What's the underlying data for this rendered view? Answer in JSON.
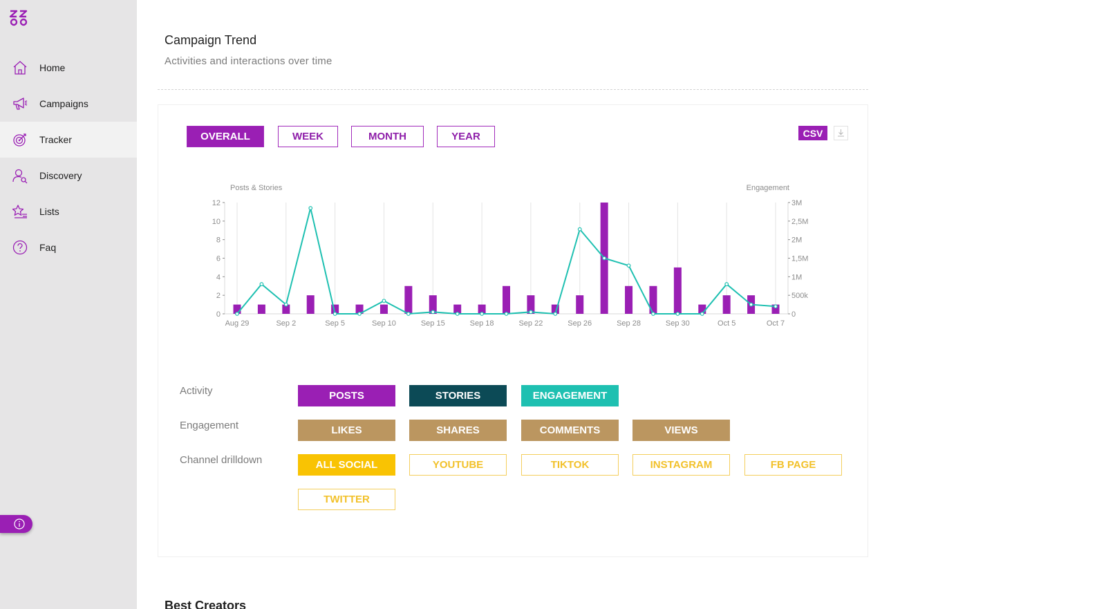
{
  "sidebar": {
    "items": [
      {
        "label": "Home",
        "icon": "home-icon"
      },
      {
        "label": "Campaigns",
        "icon": "megaphone-icon"
      },
      {
        "label": "Tracker",
        "icon": "target-icon",
        "active": true
      },
      {
        "label": "Discovery",
        "icon": "user-search-icon"
      },
      {
        "label": "Lists",
        "icon": "star-list-icon"
      },
      {
        "label": "Faq",
        "icon": "question-icon"
      }
    ]
  },
  "header": {
    "title": "Campaign Trend",
    "subtitle": "Activities and interactions over time"
  },
  "ranges": [
    "OVERALL",
    "WEEK",
    "MONTH",
    "YEAR"
  ],
  "active_range": "OVERALL",
  "csv_label": "CSV",
  "colors": {
    "accent": "#9a1fb4",
    "stories": "#0c4a56",
    "engagement": "#1ec0b1",
    "engagement_metric": "#bb9660",
    "social": "#f9c303"
  },
  "chart_data": {
    "type": "bar",
    "ylabel": "Posts & Stories",
    "y2label": "Engagement",
    "ylim": [
      0,
      12
    ],
    "y2lim": [
      0,
      3000000
    ],
    "yticks": [
      "0",
      "2",
      "4",
      "6",
      "8",
      "10",
      "12"
    ],
    "y2ticks": [
      "0",
      "500k",
      "1M",
      "1,5M",
      "2M",
      "2,5M",
      "3M"
    ],
    "xticks": [
      "Aug 29",
      "Sep 2",
      "Sep 5",
      "Sep 10",
      "Sep 15",
      "Sep 18",
      "Sep 22",
      "Sep 26",
      "Sep 28",
      "Sep 30",
      "Oct 5",
      "Oct 7"
    ],
    "series": [
      {
        "name": "Posts",
        "type": "bar",
        "values": [
          1,
          1,
          1,
          2,
          1,
          1,
          1,
          3,
          2,
          1,
          1,
          3,
          2,
          1,
          2,
          12,
          3,
          3,
          5,
          1,
          2,
          2,
          1
        ]
      },
      {
        "name": "Engagement",
        "type": "line",
        "values": [
          0,
          800000,
          250000,
          2850000,
          0,
          0,
          350000,
          0,
          50000,
          0,
          0,
          0,
          50000,
          0,
          2280000,
          1500000,
          1300000,
          0,
          0,
          0,
          800000,
          250000,
          200000
        ]
      }
    ],
    "grid": true
  },
  "filters": {
    "activity": {
      "label": "Activity",
      "chips": [
        "POSTS",
        "STORIES",
        "ENGAGEMENT"
      ]
    },
    "engagement": {
      "label": "Engagement",
      "chips": [
        "LIKES",
        "SHARES",
        "COMMENTS",
        "VIEWS"
      ]
    },
    "channel": {
      "label": "Channel drilldown",
      "chips": [
        "ALL SOCIAL",
        "YOUTUBE",
        "TIKTOK",
        "INSTAGRAM",
        "FB PAGE",
        "TWITTER"
      ]
    }
  },
  "best_creators_title": "Best Creators"
}
